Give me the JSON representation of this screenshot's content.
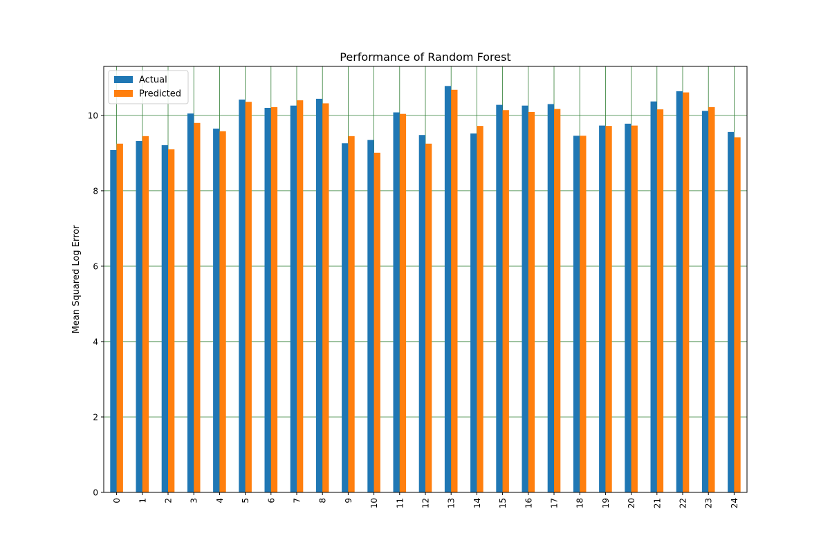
{
  "chart_data": {
    "type": "bar",
    "title": "Performance of Random Forest",
    "xlabel": "",
    "ylabel": "Mean Squared Log Error",
    "categories": [
      "0",
      "1",
      "2",
      "3",
      "4",
      "5",
      "6",
      "7",
      "8",
      "9",
      "10",
      "11",
      "12",
      "13",
      "14",
      "15",
      "16",
      "17",
      "18",
      "19",
      "20",
      "21",
      "22",
      "23",
      "24"
    ],
    "series": [
      {
        "name": "Actual",
        "color": "#1f77b4",
        "values": [
          9.08,
          9.32,
          9.21,
          10.05,
          9.65,
          10.42,
          10.2,
          10.26,
          10.44,
          9.26,
          9.35,
          10.08,
          9.48,
          10.78,
          9.52,
          10.28,
          10.26,
          10.3,
          9.46,
          9.73,
          9.78,
          10.37,
          10.64,
          10.12,
          9.56
        ]
      },
      {
        "name": "Predicted",
        "color": "#ff7f0e",
        "values": [
          9.25,
          9.45,
          9.1,
          9.8,
          9.58,
          10.36,
          10.22,
          10.4,
          10.32,
          9.45,
          9.01,
          10.04,
          9.25,
          10.68,
          9.72,
          10.14,
          10.09,
          10.17,
          9.46,
          9.72,
          9.73,
          10.16,
          10.61,
          10.22,
          9.42
        ]
      }
    ],
    "ylim": [
      0,
      11.3
    ],
    "yticks": [
      "0",
      "2",
      "4",
      "6",
      "8",
      "10"
    ],
    "grid": true,
    "grid_color": "#2e7d32",
    "legend_position": "upper-left",
    "xtick_rotation": "vertical"
  }
}
